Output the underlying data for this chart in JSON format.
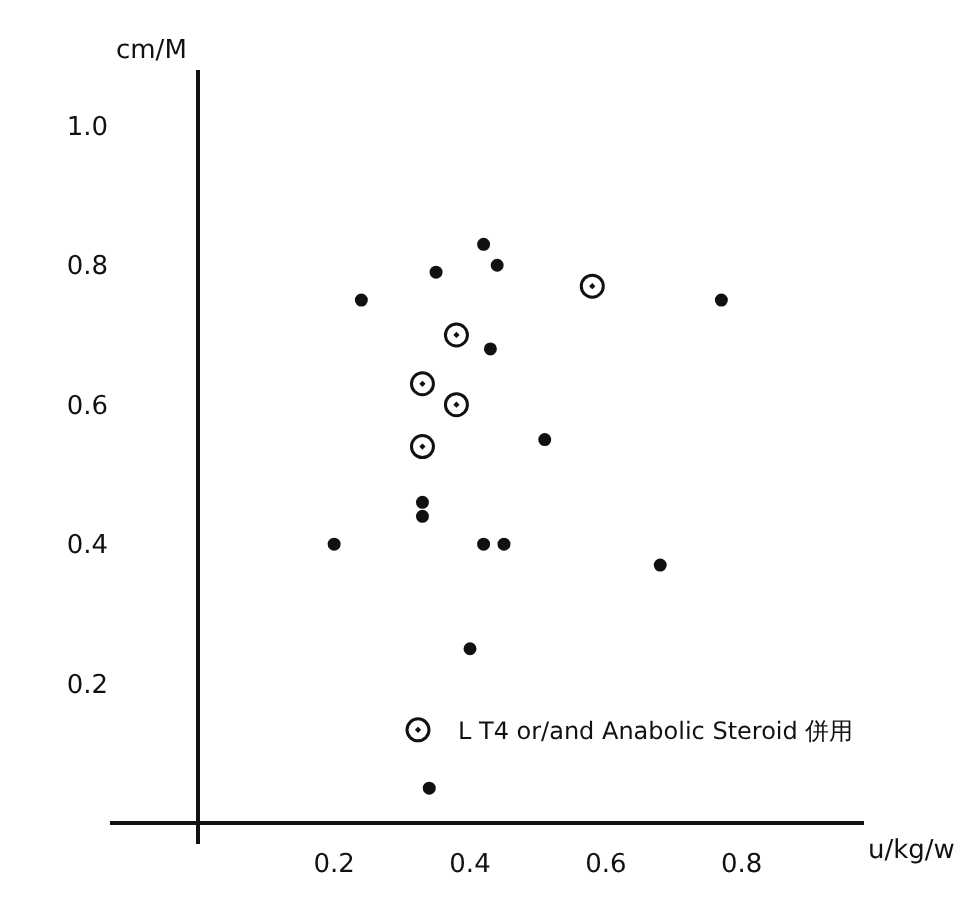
{
  "chart_data": {
    "type": "scatter",
    "xlabel": "u/kg/w",
    "ylabel": "cm/M",
    "xlim": [
      -0.13,
      0.98
    ],
    "ylim": [
      -0.03,
      1.08
    ],
    "xticks": [
      0.2,
      0.4,
      0.6,
      0.8
    ],
    "yticks": [
      0.2,
      0.4,
      0.6,
      0.8,
      {
        "value": 1,
        "label": "1.0"
      }
    ],
    "grid": false,
    "legend": "bottom right",
    "marker": "circle",
    "series": [
      {
        "color": "#111111",
        "x": [
          0.24,
          0.35,
          0.42,
          0.44,
          0.43,
          0.51,
          0.77,
          0.33,
          0.33,
          0.2,
          0.42,
          0.45,
          0.68,
          0.4,
          0.34
        ],
        "values": [
          0.75,
          0.79,
          0.83,
          0.8,
          0.68,
          0.55,
          0.75,
          0.46,
          0.44,
          0.4,
          0.4,
          0.4,
          0.37,
          0.25,
          0.05
        ]
      },
      {
        "name": "L T4 or/and Anabolic Steroid 併用",
        "color": "#111111",
        "x": [
          0.58,
          0.38,
          0.33,
          0.38,
          0.33
        ],
        "values": [
          0.77,
          0.7,
          0.63,
          0.6,
          0.54
        ]
      }
    ]
  }
}
